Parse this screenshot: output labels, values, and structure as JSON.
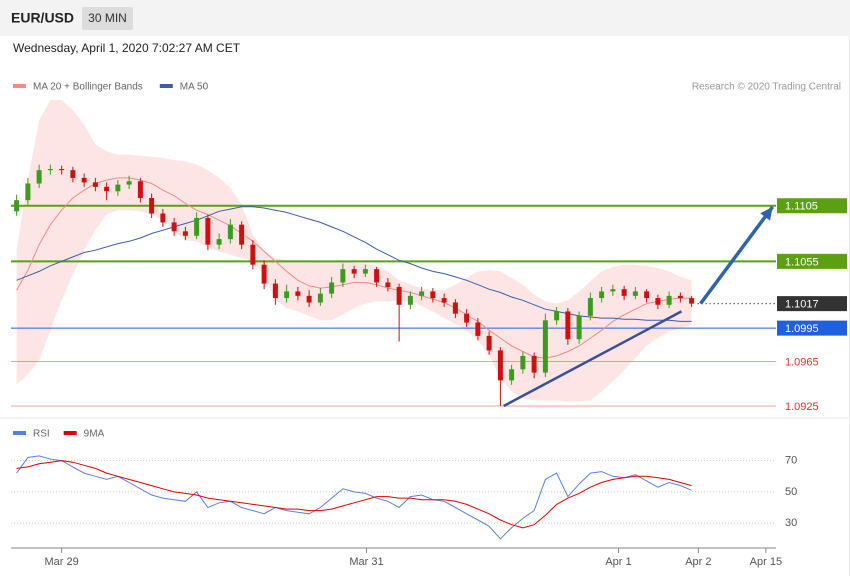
{
  "header": {
    "symbol": "EUR/USD",
    "interval": "30 MIN",
    "timestamp": "Wednesday, April 1, 2020 7:02:27 AM CET"
  },
  "chart_data": [
    {
      "type": "candlestick",
      "source": "Research © 2020 Trading Central",
      "xlim": [
        -0.5,
        67.5
      ],
      "ylim": [
        1.0916,
        1.1236
      ],
      "up_color": "#3c9a1f",
      "down_color": "#cc1111",
      "open": [
        1.11,
        1.111,
        1.1125,
        1.1137,
        1.1138,
        1.1137,
        1.113,
        1.1126,
        1.1122,
        1.1118,
        1.1124,
        1.1127,
        1.1112,
        1.1098,
        1.109,
        1.1082,
        1.1078,
        1.1094,
        1.107,
        1.1075,
        1.1088,
        1.107,
        1.1052,
        1.1035,
        1.1022,
        1.1028,
        1.1024,
        1.1018,
        1.1026,
        1.1036,
        1.1048,
        1.1044,
        1.1048,
        1.1036,
        1.1032,
        1.1016,
        1.1024,
        1.1028,
        1.1022,
        1.1018,
        1.1008,
        1.1,
        1.0988,
        1.0975,
        1.0948,
        1.0958,
        1.097,
        1.0955,
        1.1002,
        1.101,
        1.0985,
        1.1006,
        1.1022,
        1.1028,
        1.103,
        1.1024,
        1.1028,
        1.1022,
        1.1016,
        1.1024,
        1.1022
      ],
      "high": [
        1.1115,
        1.113,
        1.1142,
        1.1142,
        1.1141,
        1.114,
        1.1134,
        1.113,
        1.1126,
        1.1128,
        1.1132,
        1.113,
        1.1116,
        1.1102,
        1.1094,
        1.1086,
        1.1099,
        1.1097,
        1.108,
        1.1093,
        1.1091,
        1.1074,
        1.1056,
        1.1039,
        1.1034,
        1.1032,
        1.1029,
        1.1031,
        1.1041,
        1.1053,
        1.1051,
        1.1052,
        1.105,
        1.104,
        1.1035,
        1.1028,
        1.1032,
        1.1031,
        1.1026,
        1.1021,
        1.1012,
        1.1004,
        1.0992,
        1.0978,
        1.0962,
        1.0974,
        1.0973,
        1.1008,
        1.1014,
        1.1013,
        1.101,
        1.1027,
        1.1032,
        1.1034,
        1.1033,
        1.1032,
        1.103,
        1.1025,
        1.1028,
        1.1027,
        1.1024
      ],
      "low": [
        1.1096,
        1.1106,
        1.1121,
        1.1133,
        1.1133,
        1.1126,
        1.1122,
        1.1118,
        1.111,
        1.1114,
        1.112,
        1.1108,
        1.1094,
        1.1086,
        1.1078,
        1.1074,
        1.1075,
        1.1065,
        1.1066,
        1.1071,
        1.1066,
        1.1048,
        1.103,
        1.1016,
        1.1018,
        1.102,
        1.1014,
        1.1015,
        1.1022,
        1.1032,
        1.104,
        1.1041,
        1.1032,
        1.1028,
        1.0983,
        1.1012,
        1.102,
        1.1018,
        1.1014,
        1.1004,
        1.0996,
        1.0984,
        1.0971,
        1.0925,
        1.0944,
        1.0954,
        1.095,
        1.0951,
        1.0998,
        1.098,
        1.0981,
        1.1002,
        1.1018,
        1.1024,
        1.102,
        1.1021,
        1.1018,
        1.1012,
        1.1013,
        1.1018,
        1.1014
      ],
      "close": [
        1.111,
        1.1125,
        1.1137,
        1.1138,
        1.1137,
        1.113,
        1.1126,
        1.1122,
        1.1118,
        1.1124,
        1.1127,
        1.1112,
        1.1098,
        1.109,
        1.1082,
        1.1078,
        1.1094,
        1.107,
        1.1075,
        1.1088,
        1.107,
        1.1052,
        1.1035,
        1.1022,
        1.1028,
        1.1024,
        1.1018,
        1.1026,
        1.1036,
        1.1048,
        1.1044,
        1.1048,
        1.1036,
        1.1032,
        1.1016,
        1.1024,
        1.1028,
        1.1022,
        1.1018,
        1.1008,
        1.1,
        1.0988,
        1.0975,
        1.0948,
        1.0958,
        1.097,
        1.0955,
        1.1002,
        1.101,
        1.0985,
        1.1006,
        1.1022,
        1.1028,
        1.103,
        1.1024,
        1.1028,
        1.1022,
        1.1016,
        1.1024,
        1.1022,
        1.1017
      ],
      "series": [
        {
          "name": "MA 20 + Bollinger Bands",
          "color": "#f08c84",
          "band_color": "#fde0e0",
          "values": [
            1.1029,
            1.1047,
            1.107,
            1.1088,
            1.1101,
            1.1112,
            1.1119,
            1.1125,
            1.1128,
            1.113,
            1.113,
            1.1128,
            1.1125,
            1.1119,
            1.1114,
            1.1107,
            1.1101,
            1.1097,
            1.1092,
            1.1087,
            1.108,
            1.1073,
            1.1064,
            1.1055,
            1.1046,
            1.1038,
            1.1033,
            1.1031,
            1.1032,
            1.1034,
            1.1036,
            1.1036,
            1.1034,
            1.1031,
            1.1029,
            1.1027,
            1.1024,
            1.1021,
            1.1018,
            1.1013,
            1.1007,
            1.1001,
            1.0993,
            1.0986,
            1.0979,
            1.0974,
            1.0969,
            1.0968,
            1.097,
            1.0974,
            1.0979,
            1.0986,
            1.0993,
            1.1001,
            1.1007,
            1.1012,
            1.1017,
            1.1019,
            1.1021,
            1.1022,
            1.1022
          ],
          "upper": [
            1.1065,
            1.1128,
            1.1182,
            1.12,
            1.12,
            1.1191,
            1.1178,
            1.116,
            1.1154,
            1.1151,
            1.1151,
            1.115,
            1.1149,
            1.1148,
            1.1146,
            1.1145,
            1.1142,
            1.1137,
            1.113,
            1.1121,
            1.1106,
            1.1079,
            1.1064,
            1.1058,
            1.1056,
            1.1056,
            1.1056,
            1.1055,
            1.1055,
            1.1055,
            1.1054,
            1.1053,
            1.1051,
            1.1046,
            1.1038,
            1.1034,
            1.1031,
            1.1029,
            1.1029,
            1.1034,
            1.104,
            1.1046,
            1.1047,
            1.1046,
            1.104,
            1.1034,
            1.1025,
            1.1019,
            1.1017,
            1.102,
            1.1028,
            1.1037,
            1.1046,
            1.105,
            1.1052,
            1.1052,
            1.1051,
            1.1049,
            1.1046,
            1.1041,
            1.1038
          ],
          "lower": [
            1.0944,
            1.0953,
            1.0966,
            1.0993,
            1.102,
            1.1043,
            1.1065,
            1.1083,
            1.1097,
            1.1101,
            1.1101,
            1.11,
            1.1097,
            1.1092,
            1.1082,
            1.1074,
            1.1073,
            1.1067,
            1.1064,
            1.1061,
            1.1058,
            1.1055,
            1.1043,
            1.102,
            1.1013,
            1.101,
            1.1006,
            1.1002,
            1.1002,
            1.1007,
            1.1013,
            1.1017,
            1.1019,
            1.1019,
            1.102,
            1.1019,
            1.1015,
            1.101,
            1.1004,
            1.0999,
            1.0993,
            1.0984,
            1.0971,
            1.095,
            1.0938,
            1.0932,
            1.093,
            1.093,
            1.093,
            1.0929,
            1.0929,
            1.093,
            1.0938,
            1.0947,
            1.0957,
            1.0968,
            1.0979,
            1.0986,
            1.0992,
            1.0995,
            1.0998
          ]
        },
        {
          "name": "MA 50",
          "color": "#3a5ea8",
          "values": [
            1.1038,
            1.1042,
            1.1046,
            1.1051,
            1.1055,
            1.1059,
            1.1063,
            1.1065,
            1.1068,
            1.1071,
            1.1073,
            1.1076,
            1.108,
            1.1083,
            1.1086,
            1.1089,
            1.1092,
            1.1096,
            1.11,
            1.1102,
            1.1104,
            1.1104,
            1.1103,
            1.1101,
            1.1099,
            1.1096,
            1.1093,
            1.109,
            1.1086,
            1.1082,
            1.1077,
            1.1072,
            1.1066,
            1.1061,
            1.1056,
            1.1053,
            1.1049,
            1.1046,
            1.1044,
            1.1041,
            1.1038,
            1.1034,
            1.103,
            1.1027,
            1.1023,
            1.102,
            1.1016,
            1.1012,
            1.101,
            1.1008,
            1.1006,
            1.1005,
            1.1004,
            1.1004,
            1.1003,
            1.1003,
            1.1002,
            1.1002,
            1.1002,
            1.1001,
            1.1001
          ]
        }
      ],
      "levels": [
        {
          "value": 1.1105,
          "color": "#5aa012",
          "style": "box",
          "line": "solid"
        },
        {
          "value": 1.1055,
          "color": "#5aa012",
          "style": "box",
          "line": "solid"
        },
        {
          "value": 1.1017,
          "color": "#333333",
          "style": "box",
          "line": "dotted"
        },
        {
          "value": 1.0995,
          "color": "#1f5fe0",
          "style": "box",
          "line": "solid"
        },
        {
          "value": 1.0965,
          "color": "#e03030",
          "style": "text",
          "line": "thin"
        },
        {
          "value": 1.0925,
          "color": "#e03030",
          "style": "text",
          "line": "thin"
        }
      ],
      "trendline": {
        "color": "#3a4f96",
        "x": [
          43.3,
          59.1
        ],
        "y": [
          1.0925,
          1.101
        ]
      },
      "arrow": {
        "color": "#2f62b0",
        "x": [
          60.8,
          67.2
        ],
        "y": [
          1.1017,
          1.1104
        ]
      }
    },
    {
      "type": "line",
      "xlim": [
        -0.5,
        67.5
      ],
      "ylim": [
        16,
        80
      ],
      "yticks": [
        70,
        50,
        30
      ],
      "grid": true,
      "xticks": [
        {
          "value": 4,
          "label": "Mar 29"
        },
        {
          "value": 31.1,
          "label": "Mar 31"
        },
        {
          "value": 53.5,
          "label": "Apr 1"
        },
        {
          "value": 60.6,
          "label": "Apr 2"
        },
        {
          "value": 66.6,
          "label": "Apr 15"
        }
      ],
      "series": [
        {
          "name": "RSI",
          "color": "#5b80dc",
          "values": [
            62,
            72,
            73,
            71,
            70,
            66,
            62,
            60,
            58,
            60,
            56,
            52,
            48,
            46,
            45,
            44,
            50,
            40,
            43,
            44,
            40,
            38,
            36,
            40,
            38,
            37,
            36,
            40,
            46,
            52,
            50,
            49,
            46,
            44,
            40,
            47,
            48,
            45,
            44,
            40,
            36,
            32,
            28,
            20,
            27,
            33,
            38,
            58,
            62,
            47,
            55,
            62,
            63,
            60,
            59,
            61,
            57,
            53,
            56,
            54,
            51
          ]
        },
        {
          "name": "9MA",
          "color": "#e00000",
          "values": [
            65,
            66,
            68,
            69,
            70,
            69,
            67,
            65,
            62,
            60,
            58,
            56,
            54,
            52,
            50,
            49,
            48,
            46,
            45,
            44,
            43,
            42,
            41,
            40,
            39,
            39,
            38,
            38,
            39,
            41,
            43,
            45,
            47,
            47,
            46,
            46,
            45,
            45,
            45,
            44,
            42,
            39,
            36,
            32,
            29,
            27,
            29,
            35,
            42,
            46,
            49,
            53,
            56,
            58,
            59,
            60,
            60,
            59,
            58,
            56,
            54
          ]
        }
      ]
    }
  ]
}
